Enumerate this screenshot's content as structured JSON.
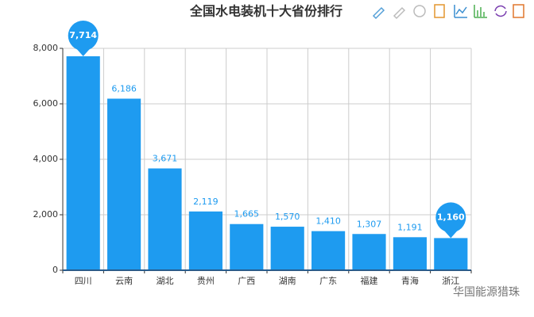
{
  "chart_data": {
    "type": "bar",
    "title": "全国水电装机十大省份排行",
    "categories": [
      "四川",
      "云南",
      "湖北",
      "贵州",
      "广西",
      "湖南",
      "广东",
      "福建",
      "青海",
      "浙江"
    ],
    "values": [
      7714,
      6186,
      3671,
      2119,
      1665,
      1570,
      1410,
      1307,
      1191,
      1160
    ],
    "value_labels": [
      "7,714",
      "6,186",
      "3,671",
      "2,119",
      "1,665",
      "1,570",
      "1,410",
      "1,307",
      "1,191",
      "1,160"
    ],
    "color": "#1e9bf0",
    "ylim": [
      0,
      8000
    ],
    "yticks": [
      0,
      {
        "value": 2000,
        "label": "2,000"
      },
      {
        "value": 4000,
        "label": "4,000"
      },
      {
        "value": 6000,
        "label": "6,000"
      },
      {
        "value": 8000,
        "label": "8,000"
      }
    ],
    "grid": true,
    "watermark": "华国能源猎珠"
  }
}
